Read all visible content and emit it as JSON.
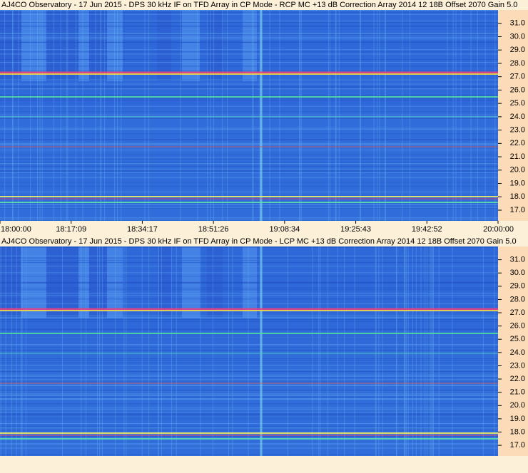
{
  "chart_data": [
    {
      "type": "spectrogram",
      "title": "AJ4CO Observatory - 17 Jun 2015 - DPS 30 kHz IF on TFD Array in CP Mode - RCP  MC +13 dB   Correction Array 2014 12 18B   Offset 2070   Gain 5.0",
      "ylim": [
        16.2,
        32.0
      ],
      "yticks": [
        {
          "value": 31,
          "label": "31.0"
        },
        {
          "value": 30,
          "label": "30.0"
        },
        {
          "value": 29,
          "label": "29.0"
        },
        {
          "value": 28,
          "label": "28.0"
        },
        {
          "value": 27,
          "label": "27.0"
        },
        {
          "value": 26,
          "label": "26.0"
        },
        {
          "value": 25,
          "label": "25.0"
        },
        {
          "value": 24,
          "label": "24.0"
        },
        {
          "value": 23,
          "label": "23.0"
        },
        {
          "value": 22,
          "label": "22.0"
        },
        {
          "value": 21,
          "label": "21.0"
        },
        {
          "value": 20,
          "label": "20.0"
        },
        {
          "value": 19,
          "label": "19.0"
        },
        {
          "value": 18,
          "label": "18.0"
        },
        {
          "value": 17,
          "label": "17.0"
        }
      ],
      "xticks": [
        "18:00:00",
        "18:17:09",
        "18:34:17",
        "18:51:26",
        "19:08:34",
        "19:25:43",
        "19:42:52",
        "20:00:00"
      ]
    },
    {
      "type": "spectrogram",
      "title": "AJ4CO Observatory - 17 Jun 2015 - DPS 30 kHz IF on TFD Array in CP Mode - LCP  MC +13 dB   Correction Array 2014 12 18B   Offset 2070   Gain 5.0",
      "ylim": [
        16.2,
        32.0
      ],
      "yticks": [
        {
          "value": 31,
          "label": "31.0"
        },
        {
          "value": 30,
          "label": "30.0"
        },
        {
          "value": 29,
          "label": "29.0"
        },
        {
          "value": 28,
          "label": "28.0"
        },
        {
          "value": 27,
          "label": "27.0"
        },
        {
          "value": 26,
          "label": "26.0"
        },
        {
          "value": 25,
          "label": "25.0"
        },
        {
          "value": 24,
          "label": "24.0"
        },
        {
          "value": 23,
          "label": "23.0"
        },
        {
          "value": 22,
          "label": "22.0"
        },
        {
          "value": 21,
          "label": "21.0"
        },
        {
          "value": 20,
          "label": "20.0"
        },
        {
          "value": 19,
          "label": "19.0"
        },
        {
          "value": 18,
          "label": "18.0"
        },
        {
          "value": 17,
          "label": "17.0"
        }
      ]
    }
  ]
}
